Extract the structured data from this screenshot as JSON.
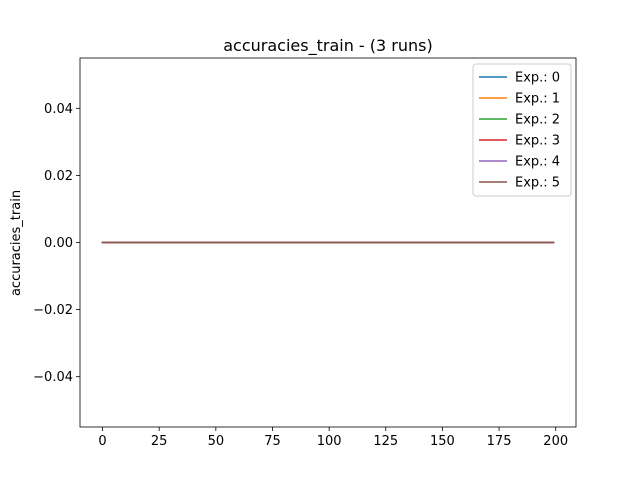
{
  "chart_data": {
    "type": "line",
    "title": "accuracies_train - (3 runs)",
    "xlabel": "",
    "ylabel": "accuracies_train",
    "xlim": [
      -9.95,
      208.95
    ],
    "ylim": [
      -0.055,
      0.055
    ],
    "x_ticks": [
      0,
      25,
      50,
      75,
      100,
      125,
      150,
      175,
      200
    ],
    "x_tick_labels": [
      "0",
      "25",
      "50",
      "75",
      "100",
      "125",
      "150",
      "175",
      "200"
    ],
    "y_ticks": [
      -0.04,
      -0.02,
      0.0,
      0.02,
      0.04
    ],
    "y_tick_labels": [
      "−0.04",
      "−0.02",
      "0.00",
      "0.02",
      "0.04"
    ],
    "grid": false,
    "legend_position": "top-right",
    "x": [
      0,
      199
    ],
    "series": [
      {
        "name": "Exp.: 0",
        "color": "#1f77b4",
        "values": [
          0,
          0
        ]
      },
      {
        "name": "Exp.: 1",
        "color": "#ff7f0e",
        "values": [
          0,
          0
        ]
      },
      {
        "name": "Exp.: 2",
        "color": "#2ca02c",
        "values": [
          0,
          0
        ]
      },
      {
        "name": "Exp.: 3",
        "color": "#d62728",
        "values": [
          0,
          0
        ]
      },
      {
        "name": "Exp.: 4",
        "color": "#9467bd",
        "values": [
          0,
          0
        ]
      },
      {
        "name": "Exp.: 5",
        "color": "#8c564b",
        "values": [
          0,
          0
        ]
      }
    ]
  }
}
